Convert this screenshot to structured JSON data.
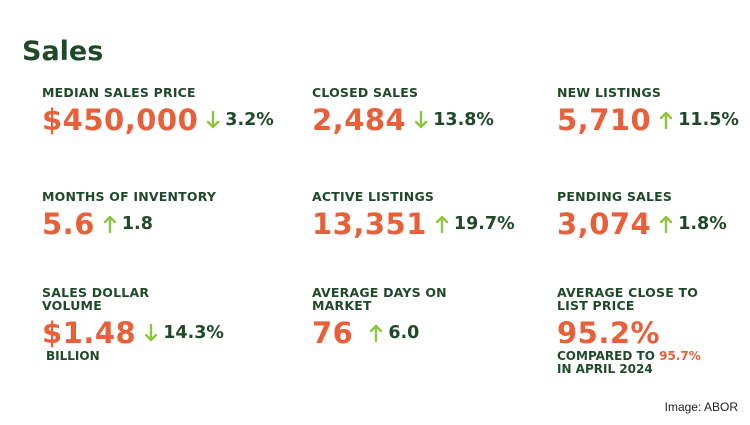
{
  "section_title": "Sales",
  "stats": [
    {
      "label": "MEDIAN SALES PRICE",
      "value": "$450,000",
      "direction": "down",
      "change": "3.2%"
    },
    {
      "label": "CLOSED SALES",
      "value": "2,484",
      "direction": "down",
      "change": "13.8%"
    },
    {
      "label": "NEW LISTINGS",
      "value": "5,710",
      "direction": "up",
      "change": "11.5%"
    },
    {
      "label": "MONTHS OF INVENTORY",
      "value": "5.6",
      "direction": "up",
      "change": "1.8"
    },
    {
      "label": "ACTIVE LISTINGS",
      "value": "13,351",
      "direction": "up",
      "change": "19.7%"
    },
    {
      "label": "PENDING SALES",
      "value": "3,074",
      "direction": "up",
      "change": "1.8%"
    },
    {
      "label_line1": "SALES DOLLAR",
      "label_line2": "VOLUME",
      "value": "$1.48",
      "direction": "down",
      "change": "14.3%",
      "unit": "BILLION"
    },
    {
      "label_line1": "AVERAGE DAYS ON",
      "label_line2": "MARKET",
      "value": "76",
      "direction": "up",
      "change": "6.0"
    },
    {
      "label_line1": "AVERAGE CLOSE TO",
      "label_line2": "LIST PRICE",
      "value": "95.2%",
      "compare_prefix": "COMPARED TO",
      "compare_value": "95.7%",
      "compare_suffix": "IN APRIL 2024"
    }
  ],
  "image_credit": "Image: ABOR",
  "colors": {
    "heading": "#1f4a2a",
    "value": "#e8603a",
    "arrow": "#8cc63f"
  }
}
